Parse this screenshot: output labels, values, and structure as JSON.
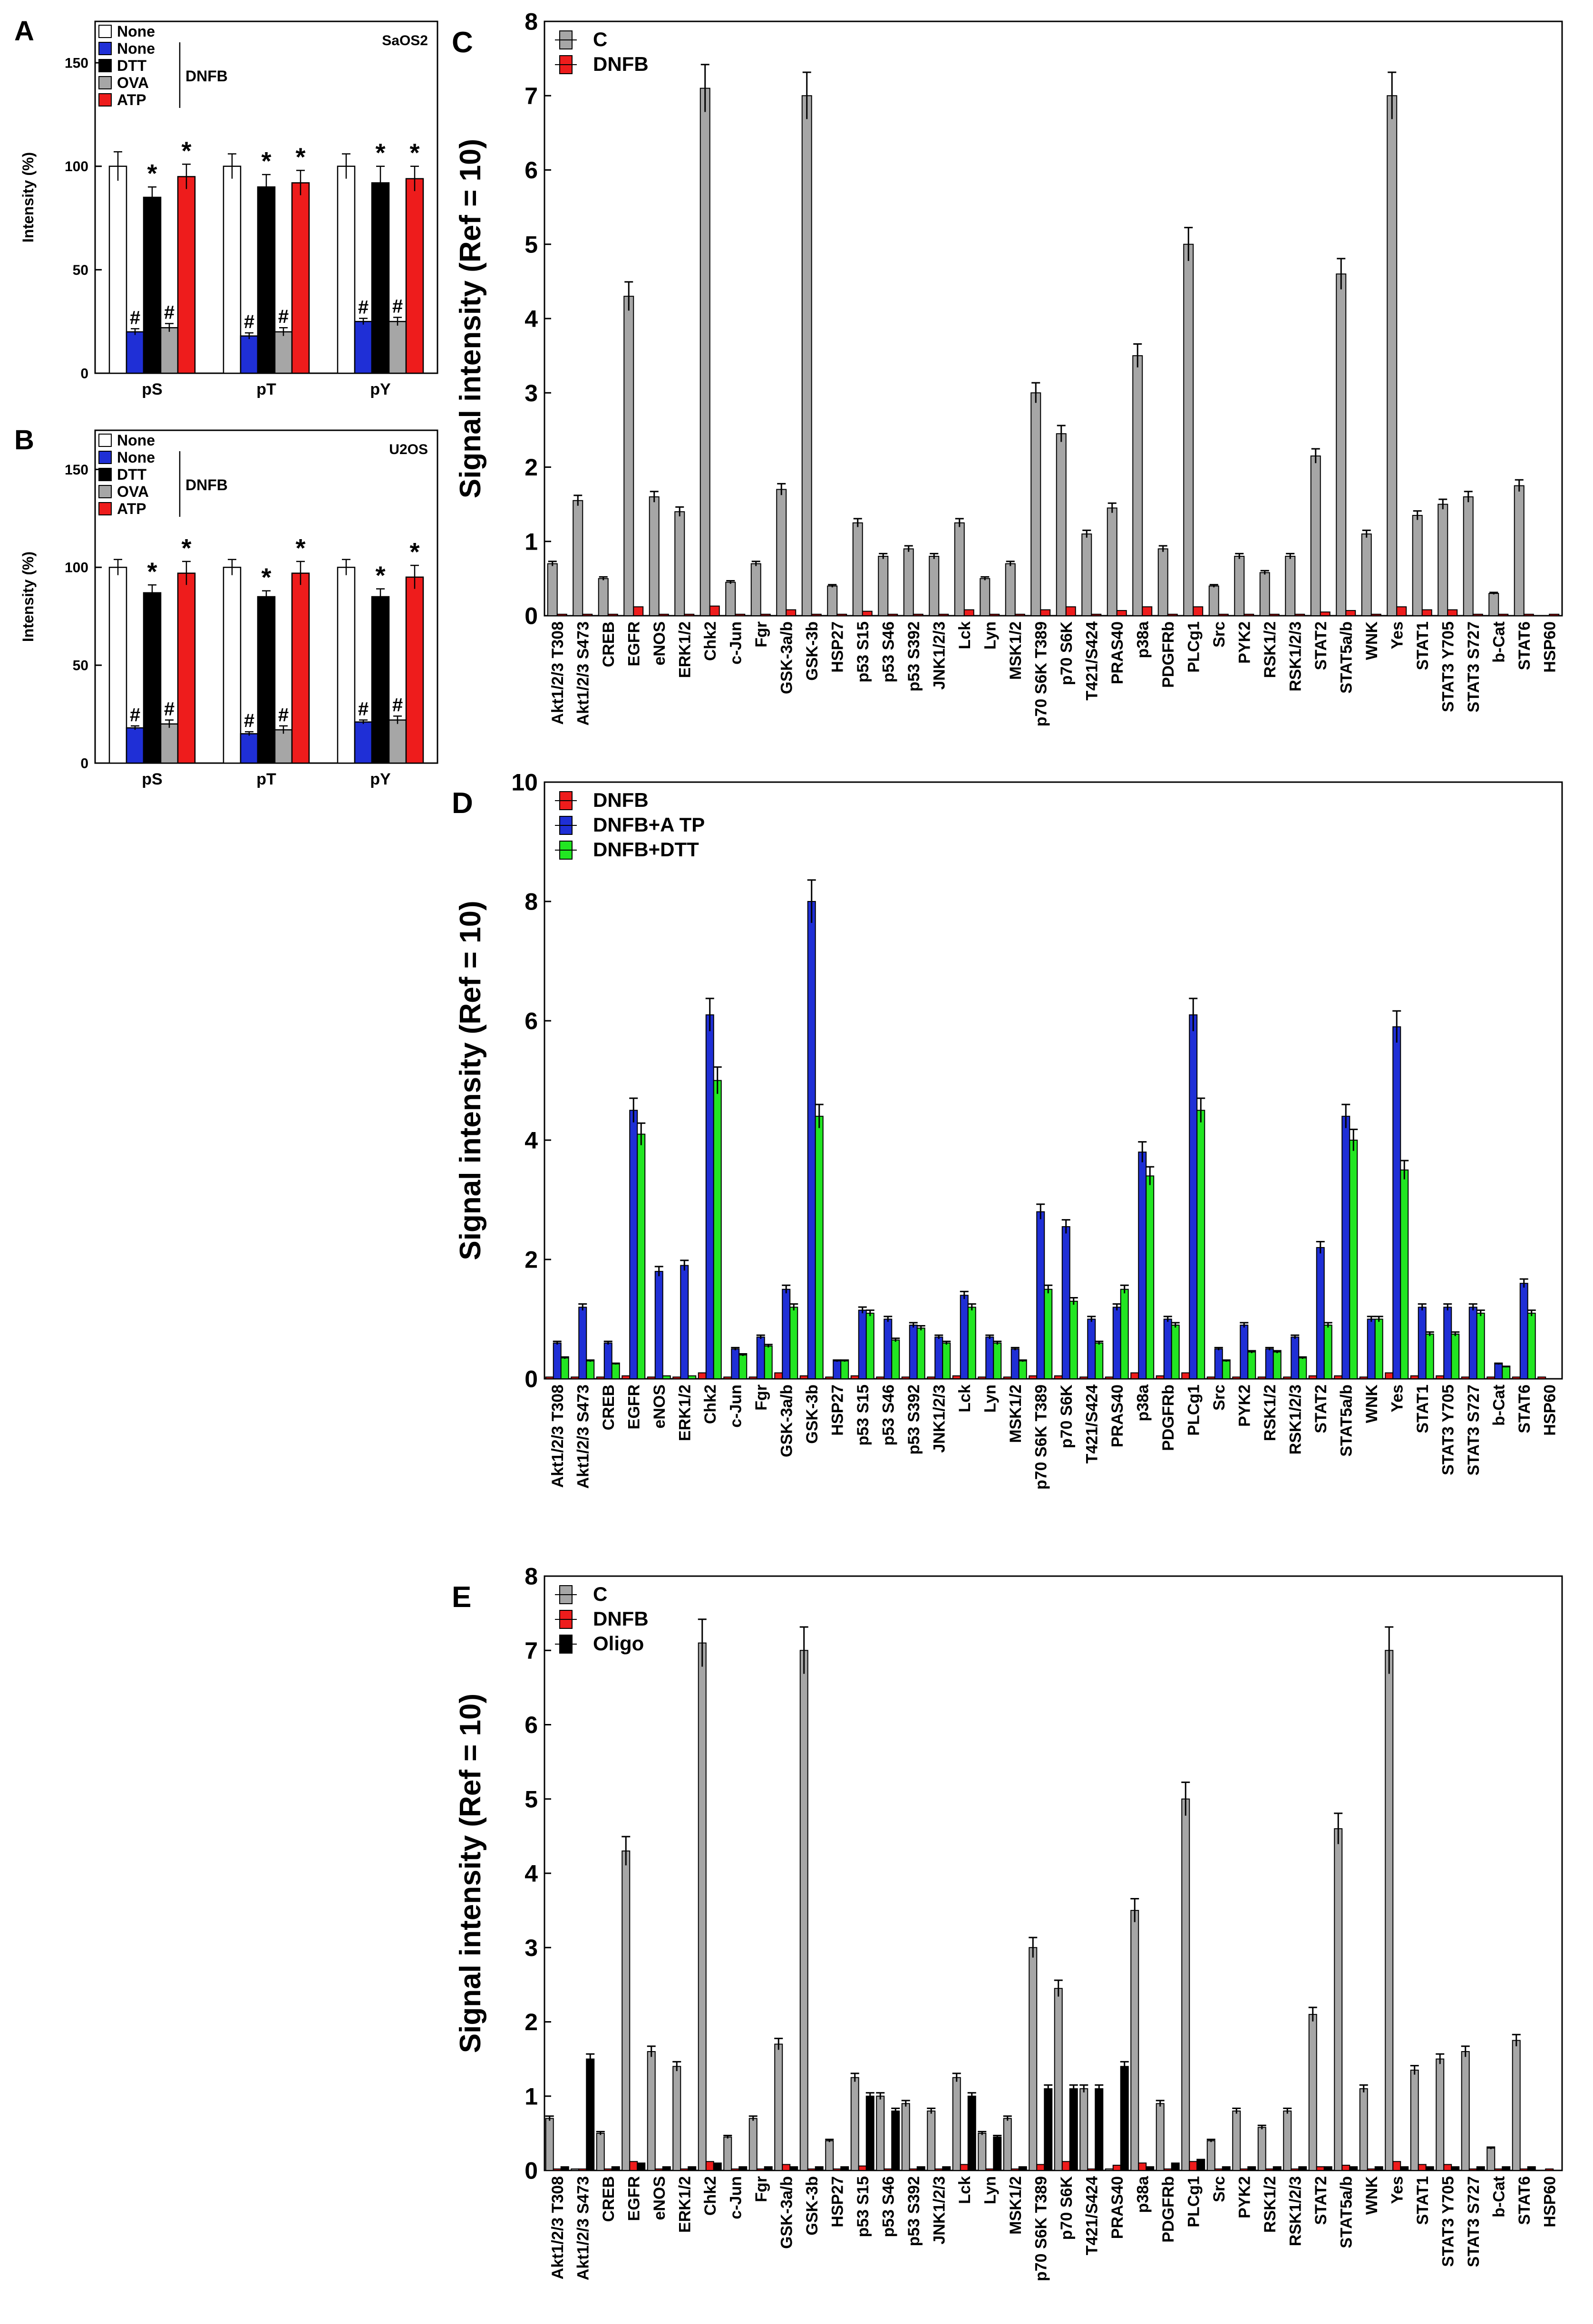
{
  "colors": {
    "white": "#ffffff",
    "blue": "#1f2fd6",
    "black": "#000000",
    "gray": "#a6a6a6",
    "red": "#ee1c1c",
    "green": "#22e622"
  },
  "chart_data": [
    {
      "id": "A",
      "panel_label": "A",
      "type": "bar",
      "cell_label": "SaOS2",
      "ylabel": "Intensity (%)",
      "ylim": [
        0,
        170
      ],
      "yticks": [
        0,
        50,
        100,
        150
      ],
      "group_label": "DNFB",
      "categories": [
        "pS",
        "pT",
        "pY"
      ],
      "series": [
        {
          "name": "None",
          "color": "white",
          "values": [
            100,
            100,
            100
          ],
          "errors": [
            7,
            6,
            6
          ],
          "marks": [
            "",
            "",
            ""
          ]
        },
        {
          "name": "None",
          "color": "blue",
          "values": [
            20,
            18,
            25
          ],
          "errors": [
            1.5,
            1.5,
            1.5
          ],
          "marks": [
            "#",
            "#",
            "#"
          ]
        },
        {
          "name": "DTT",
          "color": "black",
          "values": [
            85,
            90,
            92
          ],
          "errors": [
            5,
            6,
            8
          ],
          "marks": [
            "*",
            "*",
            "*"
          ]
        },
        {
          "name": "OVA",
          "color": "gray",
          "values": [
            22,
            20,
            25
          ],
          "errors": [
            2,
            2,
            2
          ],
          "marks": [
            "#",
            "#",
            "#"
          ]
        },
        {
          "name": "ATP",
          "color": "red",
          "values": [
            95,
            92,
            94
          ],
          "errors": [
            6,
            6,
            6
          ],
          "marks": [
            "*",
            "*",
            "*"
          ]
        }
      ]
    },
    {
      "id": "B",
      "panel_label": "B",
      "type": "bar",
      "cell_label": "U2OS",
      "ylabel": "Intensity (%)",
      "ylim": [
        0,
        170
      ],
      "yticks": [
        0,
        50,
        100,
        150
      ],
      "group_label": "DNFB",
      "categories": [
        "pS",
        "pT",
        "pY"
      ],
      "series": [
        {
          "name": "None",
          "color": "white",
          "values": [
            100,
            100,
            100
          ],
          "errors": [
            4,
            4,
            4
          ],
          "marks": [
            "",
            "",
            ""
          ]
        },
        {
          "name": "None",
          "color": "blue",
          "values": [
            18,
            15,
            21
          ],
          "errors": [
            1,
            1,
            1
          ],
          "marks": [
            "#",
            "#",
            "#"
          ]
        },
        {
          "name": "DTT",
          "color": "black",
          "values": [
            87,
            85,
            85
          ],
          "errors": [
            4,
            3,
            4
          ],
          "marks": [
            "*",
            "*",
            "*"
          ]
        },
        {
          "name": "OVA",
          "color": "gray",
          "values": [
            20,
            17,
            22
          ],
          "errors": [
            2,
            2,
            2
          ],
          "marks": [
            "#",
            "#",
            "#"
          ]
        },
        {
          "name": "ATP",
          "color": "red",
          "values": [
            97,
            97,
            95
          ],
          "errors": [
            6,
            6,
            6
          ],
          "marks": [
            "*",
            "*",
            "*"
          ]
        }
      ]
    },
    {
      "id": "C",
      "panel_label": "C",
      "type": "bar",
      "ylabel": "Signal intensity  (Ref = 10)",
      "ylim": [
        0,
        8
      ],
      "yticks": [
        0,
        1,
        2,
        3,
        4,
        5,
        6,
        7,
        8
      ],
      "categories": [
        "Akt1/2/3  T308",
        "Akt1/2/3  S473",
        "CREB",
        "EGFR",
        "eNOS",
        "ERK1/2",
        "Chk2",
        "c-Jun",
        "Fgr",
        "GSK-3a/b",
        "GSK-3b",
        "HSP27",
        "p53  S15",
        "p53  S46",
        "p53  S392",
        "JNK1/2/3",
        "Lck",
        "Lyn",
        "MSK1/2",
        "p70  S6K T389",
        "p70  S6K",
        "T421/S424",
        "PRAS40",
        "p38a",
        "PDGFRb",
        "PLCg1",
        "Src",
        "PYK2",
        "RSK1/2",
        "RSK1/2/3",
        "STAT2",
        "STAT5a/b",
        "WNK",
        "Yes",
        "STAT1",
        "STAT3  Y705",
        "STAT3  S727",
        "b-Cat",
        "STAT6",
        "HSP60"
      ],
      "series": [
        {
          "name": "C",
          "color": "gray",
          "values": [
            0.7,
            1.55,
            0.5,
            4.3,
            1.6,
            1.4,
            7.1,
            0.45,
            0.7,
            1.7,
            7.0,
            0.4,
            1.25,
            0.8,
            0.9,
            0.8,
            1.25,
            0.5,
            0.7,
            3.0,
            2.45,
            1.1,
            1.45,
            3.5,
            0.9,
            5.0,
            0.4,
            0.8,
            0.58,
            0.8,
            2.15,
            4.6,
            1.1,
            7.0,
            1.35,
            1.5,
            1.6,
            0.3,
            1.75,
            0.0
          ]
        },
        {
          "name": "DNFB",
          "color": "red",
          "values": [
            0.02,
            0.02,
            0.02,
            0.12,
            0.02,
            0.02,
            0.13,
            0.02,
            0.02,
            0.08,
            0.02,
            0.02,
            0.06,
            0.02,
            0.02,
            0.02,
            0.08,
            0.02,
            0.02,
            0.08,
            0.12,
            0.02,
            0.07,
            0.12,
            0.02,
            0.12,
            0.02,
            0.02,
            0.02,
            0.02,
            0.05,
            0.07,
            0.02,
            0.12,
            0.08,
            0.08,
            0.02,
            0.02,
            0.02,
            0.02
          ]
        }
      ]
    },
    {
      "id": "D",
      "panel_label": "D",
      "type": "bar",
      "ylabel": "Signal intensity  (Ref = 10)",
      "ylim": [
        0,
        10
      ],
      "yticks": [
        0,
        2,
        4,
        6,
        8,
        10
      ],
      "categories": [
        "Akt1/2/3  T308",
        "Akt1/2/3  S473",
        "CREB",
        "EGFR",
        "eNOS",
        "ERK1/2",
        "Chk2",
        "c-Jun",
        "Fgr",
        "GSK-3a/b",
        "GSK-3b",
        "HSP27",
        "p53  S15",
        "p53  S46",
        "p53  S392",
        "JNK1/2/3",
        "Lck",
        "Lyn",
        "MSK1/2",
        "p70  S6K T389",
        "p70  S6K",
        "T421/S424",
        "PRAS40",
        "p38a",
        "PDGFRb",
        "PLCg1",
        "Src",
        "PYK2",
        "RSK1/2",
        "RSK1/2/3",
        "STAT2",
        "STAT5a/b",
        "WNK",
        "Yes",
        "STAT1",
        "STAT3  Y705",
        "STAT3  S727",
        "b-Cat",
        "STAT6",
        "HSP60"
      ],
      "series": [
        {
          "name": "DNFB",
          "color": "red",
          "values": [
            0.03,
            0.03,
            0.03,
            0.05,
            0.03,
            0.03,
            0.1,
            0.03,
            0.03,
            0.1,
            0.05,
            0.03,
            0.05,
            0.03,
            0.03,
            0.03,
            0.05,
            0.03,
            0.03,
            0.05,
            0.05,
            0.03,
            0.03,
            0.1,
            0.05,
            0.1,
            0.03,
            0.03,
            0.03,
            0.03,
            0.05,
            0.05,
            0.03,
            0.1,
            0.05,
            0.05,
            0.03,
            0.03,
            0.03,
            0.03
          ]
        },
        {
          "name": "DNFB+A TP",
          "color": "blue",
          "values": [
            0.6,
            1.2,
            0.6,
            4.5,
            1.8,
            1.9,
            6.1,
            0.5,
            0.7,
            1.5,
            8.0,
            0.3,
            1.15,
            1.0,
            0.9,
            0.7,
            1.4,
            0.7,
            0.5,
            2.8,
            2.55,
            1.0,
            1.2,
            3.8,
            1.0,
            6.1,
            0.5,
            0.9,
            0.5,
            0.7,
            2.2,
            4.4,
            1.0,
            5.9,
            1.2,
            1.2,
            1.2,
            0.25,
            1.6,
            0.0
          ]
        },
        {
          "name": "DNFB+DTT",
          "color": "green",
          "values": [
            0.35,
            0.3,
            0.25,
            4.1,
            0.05,
            0.05,
            5.0,
            0.4,
            0.55,
            1.2,
            4.4,
            0.3,
            1.1,
            0.65,
            0.85,
            0.6,
            1.2,
            0.6,
            0.3,
            1.5,
            1.3,
            0.6,
            1.5,
            3.4,
            0.9,
            4.5,
            0.3,
            0.45,
            0.45,
            0.35,
            0.9,
            4.0,
            1.0,
            3.5,
            0.75,
            0.75,
            1.1,
            0.2,
            1.1,
            0.0
          ]
        }
      ]
    },
    {
      "id": "E",
      "panel_label": "E",
      "type": "bar",
      "ylabel": "Signal intensity  (Ref = 10)",
      "ylim": [
        0,
        8
      ],
      "yticks": [
        0,
        1,
        2,
        3,
        4,
        5,
        6,
        7,
        8
      ],
      "categories": [
        "Akt1/2/3  T308",
        "Akt1/2/3  S473",
        "CREB",
        "EGFR",
        "eNOS",
        "ERK1/2",
        "Chk2",
        "c-Jun",
        "Fgr",
        "GSK-3a/b",
        "GSK-3b",
        "HSP27",
        "p53  S15",
        "p53  S46",
        "p53  S392",
        "JNK1/2/3",
        "Lck",
        "Lyn",
        "MSK1/2",
        "p70  S6K T389",
        "p70  S6K",
        "T421/S424",
        "PRAS40",
        "p38a",
        "PDGFRb",
        "PLCg1",
        "Src",
        "PYK2",
        "RSK1/2",
        "RSK1/2/3",
        "STAT2",
        "STAT5a/b",
        "WNK",
        "Yes",
        "STAT1",
        "STAT3  Y705",
        "STAT3  S727",
        "b-Cat",
        "STAT6",
        "HSP60"
      ],
      "series": [
        {
          "name": "C",
          "color": "gray",
          "values": [
            0.7,
            0.02,
            0.5,
            4.3,
            1.6,
            1.4,
            7.1,
            0.45,
            0.7,
            1.7,
            7.0,
            0.4,
            1.25,
            1.0,
            0.9,
            0.8,
            1.25,
            0.5,
            0.7,
            3.0,
            2.45,
            1.1,
            0.02,
            3.5,
            0.9,
            5.0,
            0.4,
            0.8,
            0.58,
            0.8,
            2.1,
            4.6,
            1.1,
            7.0,
            1.35,
            1.5,
            1.6,
            0.3,
            1.75,
            0.0
          ]
        },
        {
          "name": "DNFB",
          "color": "red",
          "values": [
            0.02,
            0.02,
            0.02,
            0.12,
            0.02,
            0.02,
            0.12,
            0.02,
            0.02,
            0.08,
            0.02,
            0.02,
            0.06,
            0.02,
            0.02,
            0.02,
            0.08,
            0.02,
            0.02,
            0.08,
            0.12,
            0.02,
            0.07,
            0.1,
            0.02,
            0.12,
            0.02,
            0.02,
            0.02,
            0.02,
            0.05,
            0.07,
            0.02,
            0.12,
            0.08,
            0.08,
            0.02,
            0.02,
            0.02,
            0.02
          ]
        },
        {
          "name": "Oligo",
          "color": "black",
          "values": [
            0.05,
            1.5,
            0.05,
            0.1,
            0.05,
            0.05,
            0.1,
            0.05,
            0.05,
            0.05,
            0.05,
            0.05,
            1.0,
            0.8,
            0.05,
            0.05,
            1.0,
            0.45,
            0.05,
            1.1,
            1.1,
            1.1,
            1.4,
            0.05,
            0.1,
            0.15,
            0.05,
            0.05,
            0.05,
            0.05,
            0.05,
            0.05,
            0.05,
            0.05,
            0.05,
            0.05,
            0.05,
            0.05,
            0.05,
            0.0
          ]
        }
      ]
    }
  ]
}
